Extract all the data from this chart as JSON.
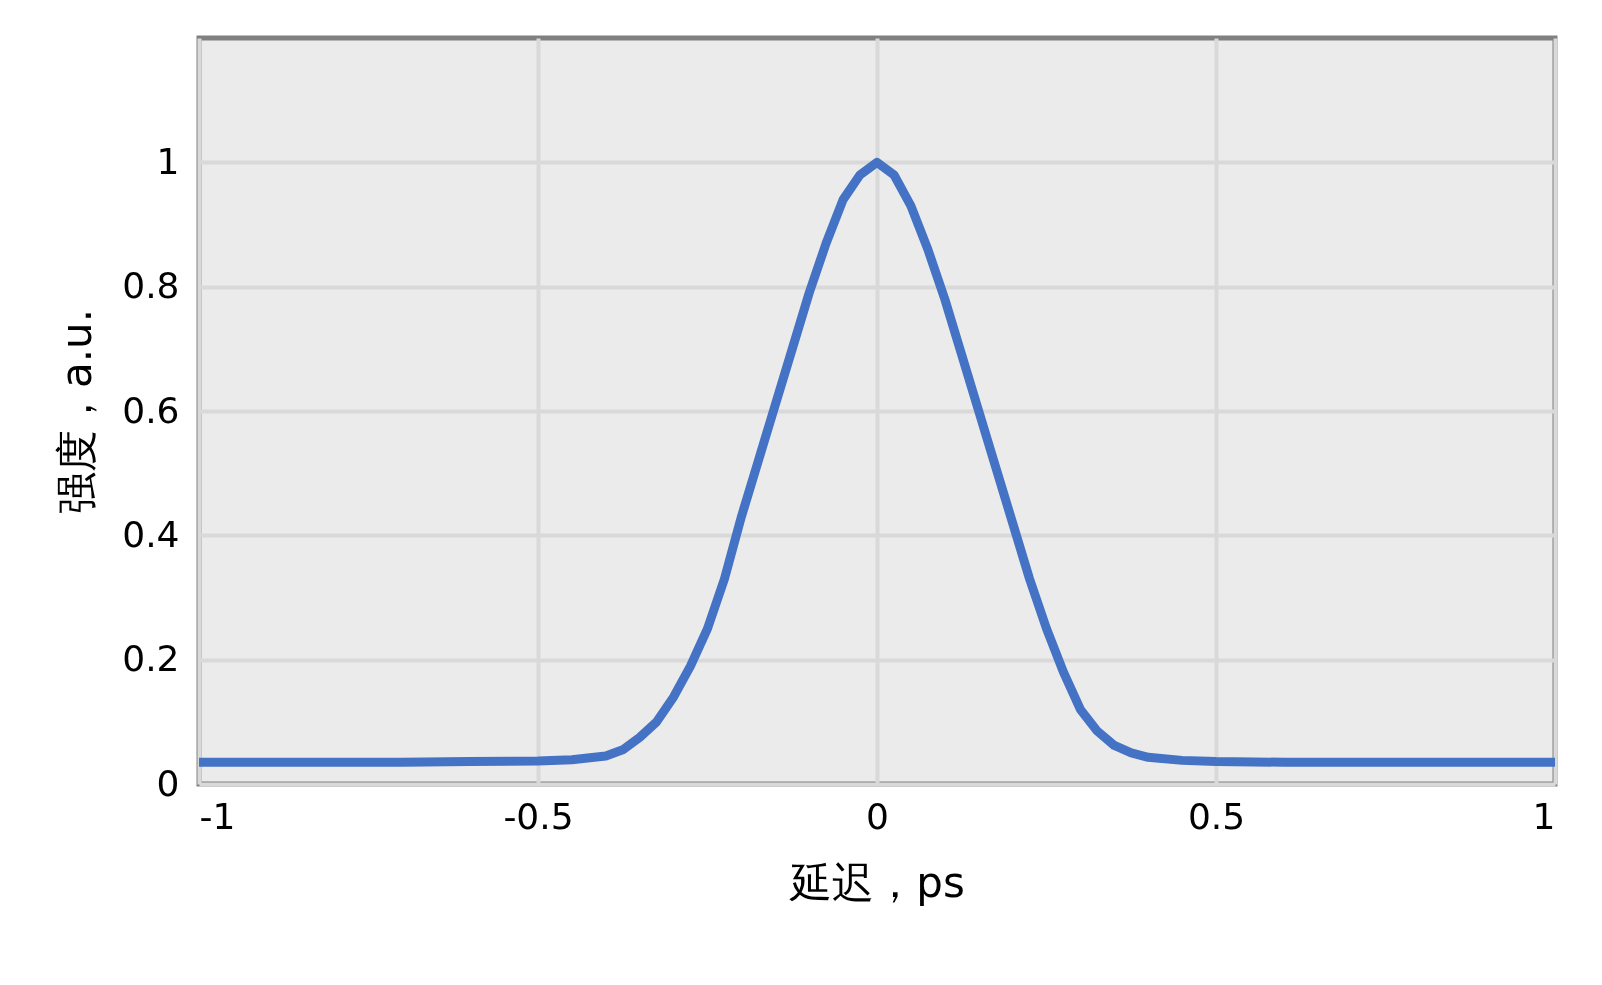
{
  "chart_data": {
    "type": "line",
    "xlabel": "延迟，ps",
    "ylabel": "强度，a.u.",
    "x": [
      -1,
      -0.9,
      -0.8,
      -0.7,
      -0.6,
      -0.5,
      -0.45,
      -0.4,
      -0.375,
      -0.35,
      -0.325,
      -0.3,
      -0.275,
      -0.25,
      -0.225,
      -0.2,
      -0.175,
      -0.15,
      -0.125,
      -0.1,
      -0.075,
      -0.05,
      -0.025,
      0,
      0.025,
      0.05,
      0.075,
      0.1,
      0.125,
      0.15,
      0.175,
      0.2,
      0.225,
      0.25,
      0.275,
      0.3,
      0.325,
      0.35,
      0.375,
      0.4,
      0.45,
      0.5,
      0.6,
      0.7,
      0.8,
      0.9,
      1
    ],
    "series": [
      {
        "color": "#4472c4",
        "values": [
          0.035,
          0.035,
          0.035,
          0.035,
          0.036,
          0.037,
          0.039,
          0.045,
          0.055,
          0.075,
          0.1,
          0.14,
          0.19,
          0.25,
          0.33,
          0.43,
          0.52,
          0.61,
          0.7,
          0.79,
          0.87,
          0.94,
          0.98,
          1.0,
          0.98,
          0.93,
          0.86,
          0.78,
          0.69,
          0.6,
          0.51,
          0.42,
          0.33,
          0.25,
          0.18,
          0.12,
          0.085,
          0.062,
          0.05,
          0.043,
          0.038,
          0.036,
          0.035,
          0.035,
          0.035,
          0.035,
          0.035
        ]
      }
    ],
    "xlim": [
      -1,
      1
    ],
    "xticks": [
      -1,
      -0.5,
      0,
      0.5,
      1
    ],
    "ylim": [
      0,
      1.2
    ],
    "yticks": [
      0,
      0.2,
      0.4,
      0.6,
      0.8,
      1
    ],
    "grid": true,
    "line_style": "solid"
  }
}
